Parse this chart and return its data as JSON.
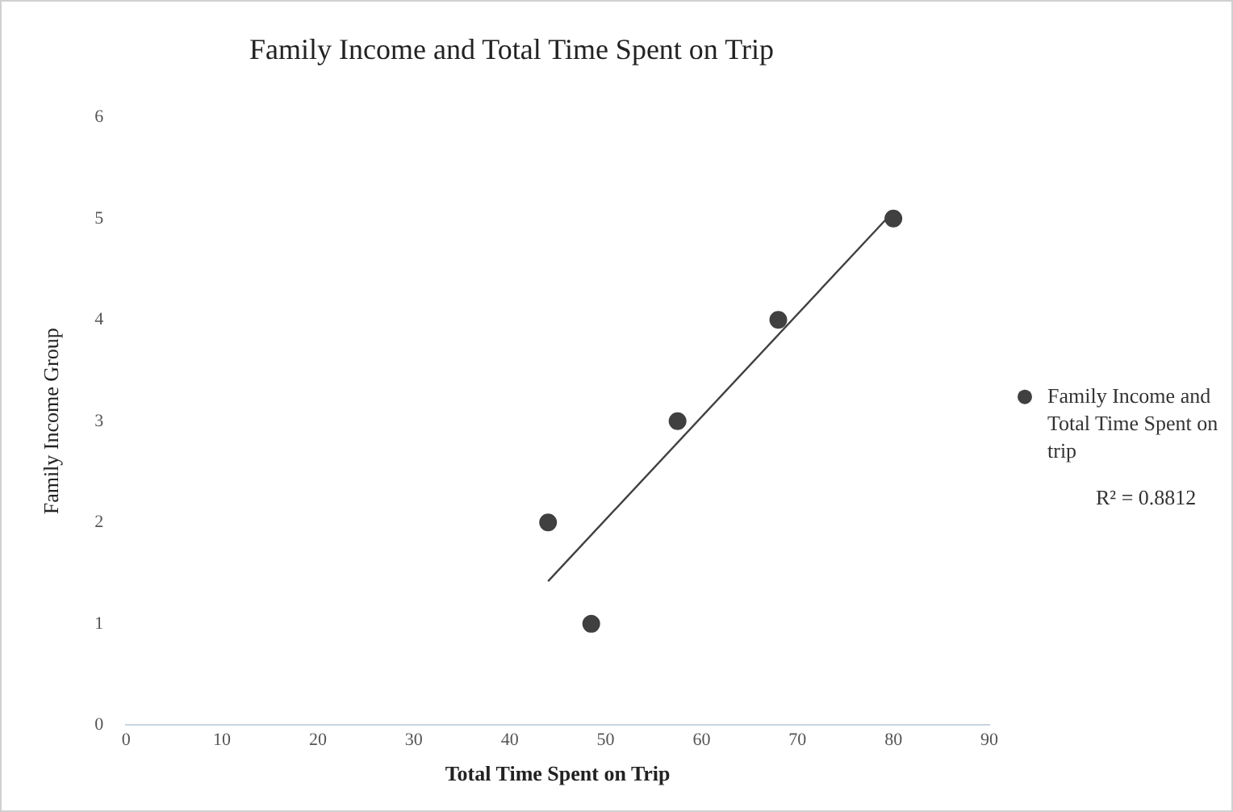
{
  "chart_data": {
    "type": "scatter",
    "title": "Family Income and Total Time Spent on Trip",
    "xlabel": "Total Time Spent on Trip",
    "ylabel": "Family Income Group",
    "series": [
      {
        "name": "Family Income and Total Time Spent on trip",
        "color": "#404040",
        "marker": "circle",
        "x": [
          44,
          48.5,
          57.5,
          68,
          80
        ],
        "values": [
          2,
          1,
          3,
          4,
          5
        ]
      },
      {
        "type": "line",
        "color": "#404040",
        "marker": "none",
        "x": [
          44,
          80
        ],
        "values": [
          1.42,
          5.07
        ]
      }
    ],
    "xlim": [
      0,
      90
    ],
    "xticks": [
      0,
      10,
      20,
      30,
      40,
      50,
      60,
      70,
      80,
      90
    ],
    "ylim": [
      0,
      6
    ],
    "yticks": [
      0,
      1,
      2,
      3,
      4,
      5,
      6
    ],
    "grid": false,
    "legend": "right",
    "annotations": [
      "R² = 0.8812"
    ]
  }
}
